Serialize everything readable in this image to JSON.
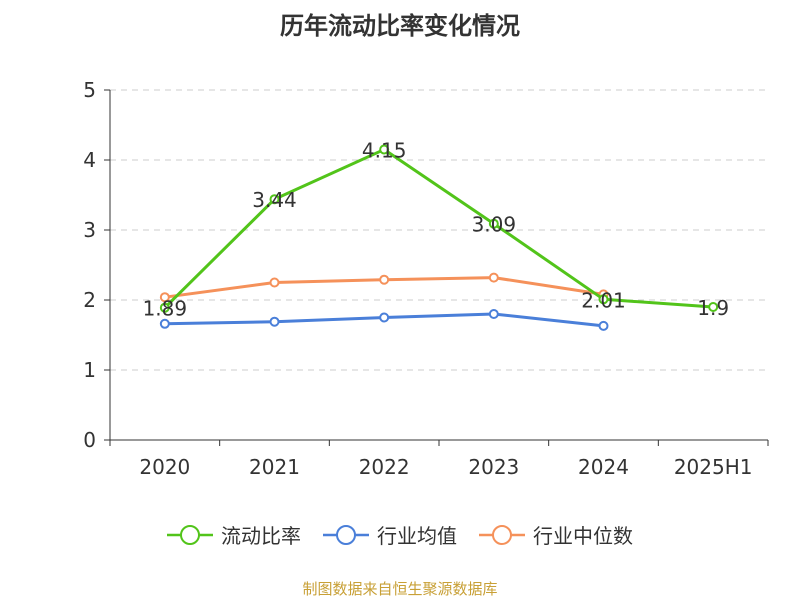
{
  "chart_data": {
    "type": "line",
    "title": "历年流动比率变化情况",
    "categories": [
      "2020",
      "2021",
      "2022",
      "2023",
      "2024",
      "2025H1"
    ],
    "y_ticks": [
      "0",
      "1",
      "2",
      "3",
      "4",
      "5"
    ],
    "ylim": [
      0,
      5
    ],
    "grid": "horizontal dashed",
    "legend_position": "bottom",
    "series": [
      {
        "name": "流动比率",
        "color": "#52c41a",
        "values": [
          1.89,
          3.44,
          4.15,
          3.09,
          2.01,
          1.9
        ],
        "data_labels": [
          "1.89",
          "3.44",
          "4.15",
          "3.09",
          "2.01",
          "1.9"
        ]
      },
      {
        "name": "行业均值",
        "color": "#4a7fd9",
        "values": [
          1.66,
          1.69,
          1.75,
          1.8,
          1.63,
          null
        ]
      },
      {
        "name": "行业中位数",
        "color": "#f5915a",
        "values": [
          2.04,
          2.25,
          2.29,
          2.32,
          2.08,
          null
        ]
      }
    ]
  },
  "source": "制图数据来自恒生聚源数据库"
}
